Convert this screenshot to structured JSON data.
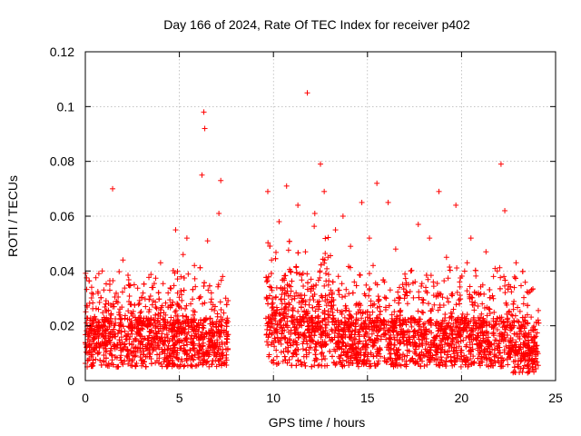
{
  "chart_data": {
    "type": "scatter",
    "title": "Day 166 of 2024, Rate Of TEC Index for receiver p402",
    "xlabel": "GPS time / hours",
    "ylabel": "ROTI / TECUs",
    "xlim": [
      0,
      25
    ],
    "ylim": [
      0,
      0.12
    ],
    "xticks": [
      0,
      5,
      10,
      15,
      20,
      25
    ],
    "yticks": [
      0,
      0.02,
      0.04,
      0.06,
      0.08,
      0.1,
      0.12
    ],
    "xtick_labels": [
      "0",
      "5",
      "10",
      "15",
      "20",
      "25"
    ],
    "ytick_labels": [
      "0",
      "0.02",
      "0.04",
      "0.06",
      "0.08",
      "0.1",
      "0.12"
    ],
    "grid": true,
    "marker": "+",
    "color": "#ff0000",
    "data_gap_hours": [
      7.6,
      9.6
    ],
    "series": [
      {
        "name": "ROTI",
        "x": [
          0.1,
          0.3,
          0.5,
          0.7,
          0.9,
          1.1,
          1.3,
          1.45,
          1.6,
          1.8,
          2.0,
          2.2,
          2.4,
          2.6,
          2.8,
          3.0,
          3.2,
          3.4,
          3.6,
          3.8,
          4.0,
          4.2,
          4.4,
          4.6,
          4.8,
          5.0,
          5.2,
          5.4,
          5.6,
          5.8,
          6.0,
          6.2,
          6.3,
          6.35,
          6.5,
          6.7,
          6.9,
          7.1,
          7.2,
          7.3,
          7.5,
          9.7,
          9.9,
          10.1,
          10.3,
          10.5,
          10.7,
          10.9,
          11.1,
          11.3,
          11.5,
          11.7,
          11.8,
          12.0,
          12.2,
          12.4,
          12.5,
          12.7,
          12.9,
          13.1,
          13.3,
          13.5,
          13.7,
          13.9,
          14.1,
          14.3,
          14.5,
          14.7,
          14.9,
          15.1,
          15.3,
          15.5,
          15.7,
          15.9,
          16.1,
          16.3,
          16.5,
          16.7,
          16.9,
          17.1,
          17.3,
          17.5,
          17.7,
          17.9,
          18.1,
          18.3,
          18.5,
          18.8,
          19.0,
          19.2,
          19.5,
          19.7,
          19.9,
          20.1,
          20.3,
          20.5,
          20.7,
          20.9,
          21.1,
          21.3,
          21.5,
          21.7,
          21.9,
          22.1,
          22.3,
          22.5,
          22.7,
          22.9,
          23.1,
          23.3,
          23.5,
          23.7,
          23.9
        ],
        "y": [
          0.005,
          0.011,
          0.018,
          0.026,
          0.04,
          0.013,
          0.033,
          0.07,
          0.016,
          0.024,
          0.044,
          0.009,
          0.021,
          0.035,
          0.012,
          0.02,
          0.027,
          0.01,
          0.034,
          0.016,
          0.043,
          0.013,
          0.032,
          0.019,
          0.055,
          0.017,
          0.046,
          0.052,
          0.028,
          0.042,
          0.016,
          0.075,
          0.098,
          0.092,
          0.051,
          0.032,
          0.027,
          0.061,
          0.073,
          0.038,
          0.014,
          0.069,
          0.044,
          0.025,
          0.058,
          0.033,
          0.071,
          0.04,
          0.022,
          0.064,
          0.03,
          0.047,
          0.105,
          0.037,
          0.061,
          0.026,
          0.079,
          0.069,
          0.045,
          0.029,
          0.055,
          0.033,
          0.06,
          0.02,
          0.049,
          0.036,
          0.025,
          0.065,
          0.031,
          0.052,
          0.042,
          0.072,
          0.019,
          0.036,
          0.065,
          0.024,
          0.048,
          0.034,
          0.021,
          0.031,
          0.04,
          0.018,
          0.057,
          0.025,
          0.034,
          0.052,
          0.036,
          0.069,
          0.022,
          0.045,
          0.031,
          0.064,
          0.036,
          0.018,
          0.043,
          0.052,
          0.021,
          0.032,
          0.028,
          0.047,
          0.026,
          0.038,
          0.04,
          0.079,
          0.062,
          0.035,
          0.021,
          0.043,
          0.017,
          0.028,
          0.024,
          0.016,
          0.014
        ]
      }
    ]
  }
}
